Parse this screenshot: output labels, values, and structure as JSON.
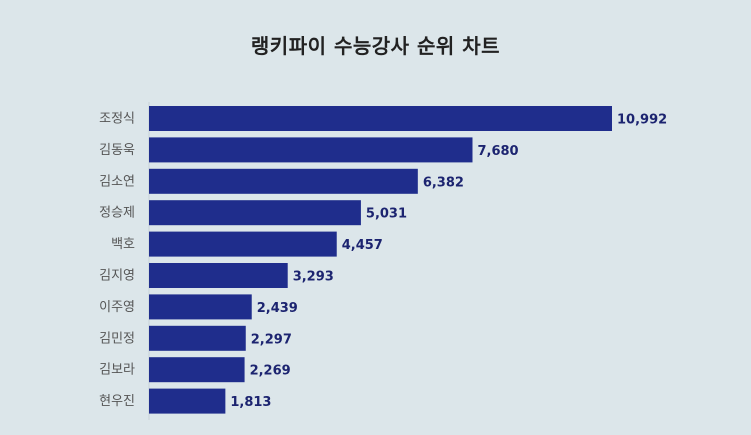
{
  "chart_data": {
    "type": "bar",
    "orientation": "horizontal",
    "title": "랭키파이 수능강사 순위 차트",
    "categories": [
      "조정식",
      "김동욱",
      "김소연",
      "정승제",
      "백호",
      "김지영",
      "이주영",
      "김민정",
      "김보라",
      "현우진"
    ],
    "values": [
      10992,
      7680,
      6382,
      5031,
      4457,
      3293,
      2439,
      2297,
      2269,
      1813
    ],
    "value_labels": [
      "10,992",
      "7,680",
      "6,382",
      "5,031",
      "4,457",
      "3,293",
      "2,439",
      "2,297",
      "2,269",
      "1,813"
    ],
    "xlabel": "",
    "ylabel": "",
    "xlim": [
      0,
      10992
    ],
    "grid": false,
    "bar_color": "#1f2d8c",
    "value_label_color": "#1c2470",
    "background_color": "#dce6ea"
  }
}
